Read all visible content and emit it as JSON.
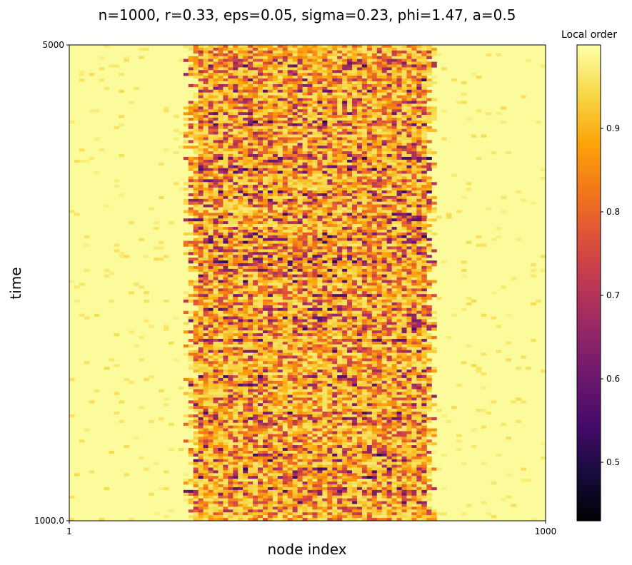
{
  "chart_data": {
    "type": "heatmap",
    "title": "n=1000, r=0.33, eps=0.05, sigma=0.23, phi=1.47, a=0.5",
    "xlabel": "node index",
    "ylabel": "time",
    "x_ticks": [
      "1",
      "1000"
    ],
    "y_ticks": [
      "1000.0",
      "5000"
    ],
    "xlim": [
      1,
      1000
    ],
    "ylim": [
      1000,
      5000
    ],
    "colorbar": {
      "title": "Local order",
      "colormap": "inferno",
      "range": [
        0.43,
        1.0
      ],
      "ticks": [
        {
          "value": 0.5,
          "label": "0.5"
        },
        {
          "value": 0.6,
          "label": "0.6"
        },
        {
          "value": 0.7,
          "label": "0.7"
        },
        {
          "value": 0.8,
          "label": "0.8"
        },
        {
          "value": 0.9,
          "label": "0.9"
        }
      ]
    },
    "grid": false,
    "pattern": {
      "background_value": 0.995,
      "incoherent_region_nodes": [
        255,
        760
      ],
      "incoherent_value_min": 0.45,
      "incoherent_value_typical": 0.85
    }
  }
}
